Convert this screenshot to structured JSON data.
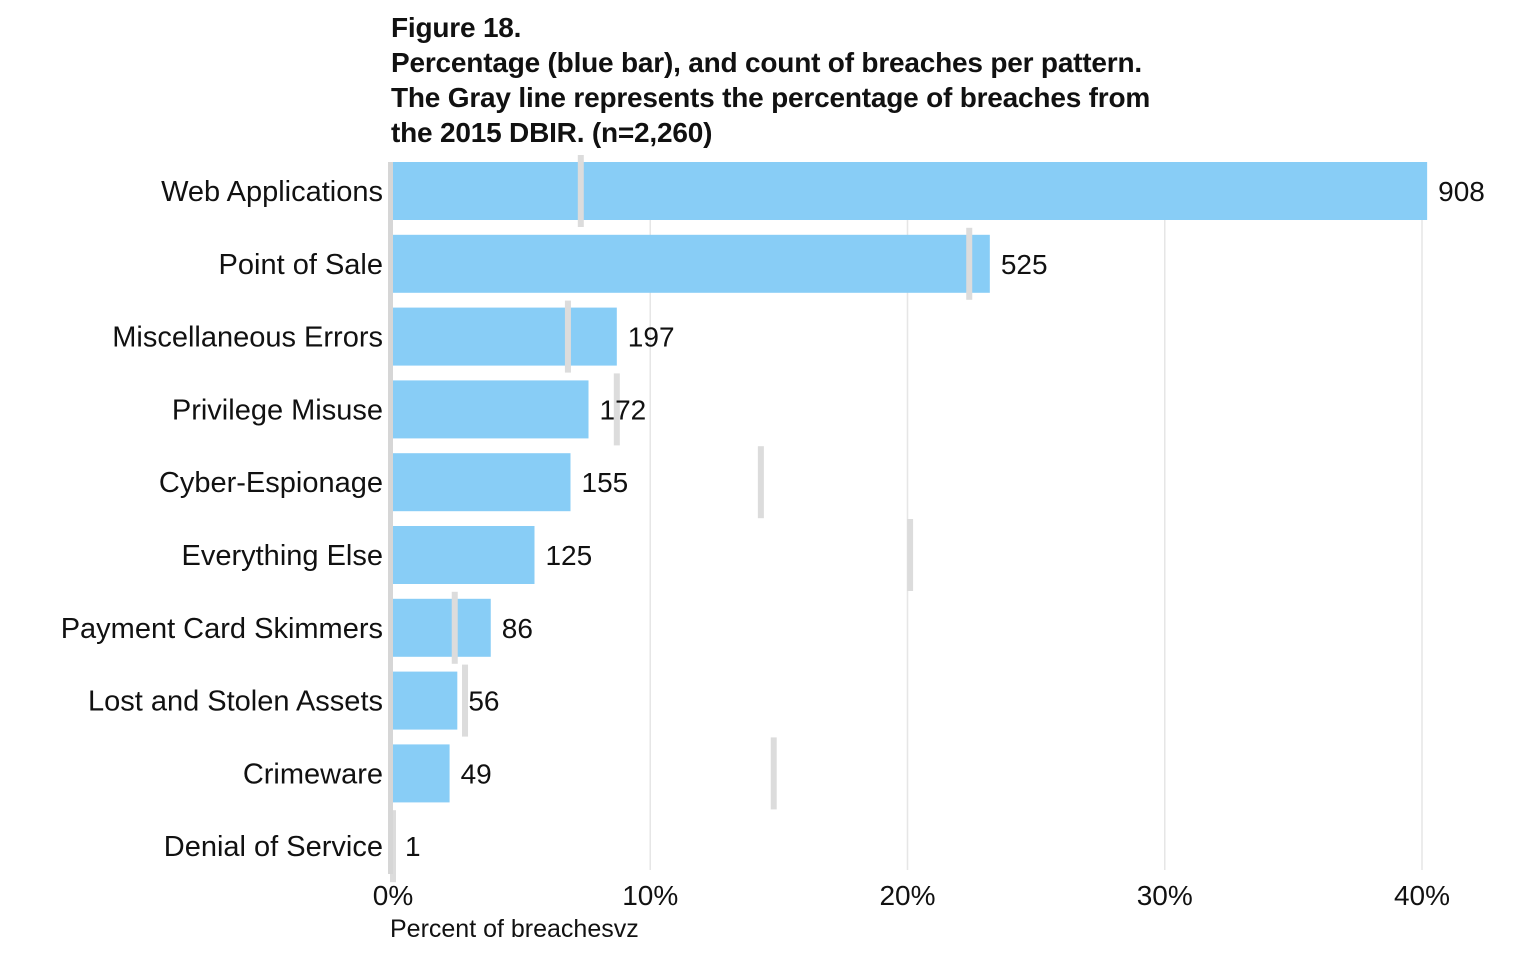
{
  "figure": {
    "label": "Figure 18.",
    "title_lines": [
      "Percentage (blue bar), and count of breaches per pattern.",
      "The Gray line represents the percentage of breaches from",
      "the 2015 DBIR. (n=2,260)"
    ]
  },
  "chart_data": {
    "type": "bar",
    "orientation": "horizontal",
    "title": "Figure 18. Percentage (blue bar), and count of breaches per pattern. The Gray line represents the percentage of breaches from the 2015 DBIR. (n=2,260)",
    "xlabel": "Percent of breachesvz",
    "ylabel": "",
    "xlim": [
      0,
      0.4
    ],
    "x_ticks": [
      0,
      0.1,
      0.2,
      0.3,
      0.4
    ],
    "x_tick_labels": [
      "0%",
      "10%",
      "20%",
      "30%",
      "40%"
    ],
    "grid": "vertical",
    "categories": [
      "Web Applications",
      "Point of Sale",
      "Miscellaneous Errors",
      "Privilege Misuse",
      "Cyber-Espionage",
      "Everything Else",
      "Payment Card Skimmers",
      "Lost and Stolen Assets",
      "Crimeware",
      "Denial of Service"
    ],
    "series": [
      {
        "values": [
          0.402,
          0.232,
          0.087,
          0.076,
          0.069,
          0.055,
          0.038,
          0.025,
          0.022,
          0.0004
        ],
        "labels": [
          "908",
          "525",
          "197",
          "172",
          "155",
          "125",
          "86",
          "56",
          "49",
          "1"
        ]
      },
      {
        "values": [
          0.073,
          0.224,
          0.068,
          0.087,
          0.143,
          0.201,
          0.024,
          0.028,
          0.148,
          0.0
        ]
      }
    ],
    "colors": {
      "bar": "#88cdf6",
      "prior_line": "#dcdcdc",
      "grid": "#e6e6e6",
      "baseline": "#d6d6d6"
    }
  }
}
